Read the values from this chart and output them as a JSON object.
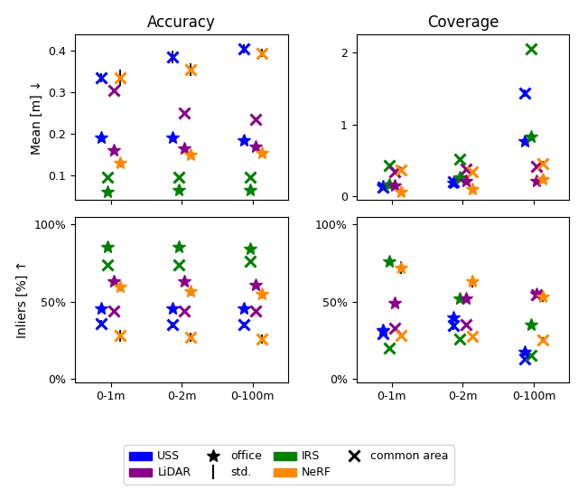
{
  "colors": {
    "USS": "#0000ff",
    "IRS": "#008000",
    "LiDAR": "#880088",
    "NeRF": "#ff8800"
  },
  "categories": [
    "0-1m",
    "0-2m",
    "0-100m"
  ],
  "x_positions": [
    1,
    2,
    3
  ],
  "acc_mean": {
    "USS": {
      "office": [
        0.19,
        0.19,
        0.185
      ],
      "common": [
        0.335,
        0.385,
        0.405
      ],
      "err_office": [
        0.01,
        0.01,
        0.01
      ],
      "err_common": [
        0.01,
        0.015,
        0.01
      ]
    },
    "IRS": {
      "office": [
        0.06,
        0.065,
        0.065
      ],
      "common": [
        0.095,
        0.095,
        0.095
      ],
      "err_office": [
        0.0,
        0.0,
        0.0
      ],
      "err_common": [
        0.0,
        0.0,
        0.0
      ]
    },
    "LiDAR": {
      "office": [
        0.16,
        0.165,
        0.17
      ],
      "common": [
        0.305,
        0.25,
        0.235
      ],
      "err_office": [
        0.0,
        0.0,
        0.0
      ],
      "err_common": [
        0.0,
        0.0,
        0.0
      ]
    },
    "NeRF": {
      "office": [
        0.13,
        0.15,
        0.155
      ],
      "common": [
        0.335,
        0.355,
        0.395
      ],
      "err_office": [
        0.01,
        0.01,
        0.01
      ],
      "err_common": [
        0.02,
        0.015,
        0.01
      ]
    }
  },
  "acc_inliers": {
    "USS": {
      "office": [
        0.46,
        0.46,
        0.46
      ],
      "common": [
        0.36,
        0.35,
        0.35
      ],
      "err_office": [
        0.02,
        0.02,
        0.02
      ],
      "err_common": [
        0.02,
        0.02,
        0.02
      ]
    },
    "IRS": {
      "office": [
        0.855,
        0.855,
        0.845
      ],
      "common": [
        0.74,
        0.74,
        0.76
      ],
      "err_office": [
        0.0,
        0.0,
        0.0
      ],
      "err_common": [
        0.0,
        0.0,
        0.0
      ]
    },
    "LiDAR": {
      "office": [
        0.63,
        0.63,
        0.61
      ],
      "common": [
        0.44,
        0.44,
        0.44
      ],
      "err_office": [
        0.0,
        0.0,
        0.0
      ],
      "err_common": [
        0.0,
        0.0,
        0.0
      ]
    },
    "NeRF": {
      "office": [
        0.6,
        0.57,
        0.55
      ],
      "common": [
        0.28,
        0.27,
        0.26
      ],
      "err_office": [
        0.03,
        0.03,
        0.03
      ],
      "err_common": [
        0.04,
        0.03,
        0.03
      ]
    }
  },
  "cov_mean": {
    "USS": {
      "office": [
        0.14,
        0.19,
        0.77
      ],
      "common": [
        0.13,
        0.2,
        1.43
      ],
      "err_office": [
        0.01,
        0.01,
        0.02
      ],
      "err_common": [
        0.01,
        0.01,
        0.05
      ]
    },
    "IRS": {
      "office": [
        0.16,
        0.26,
        0.83
      ],
      "common": [
        0.43,
        0.52,
        2.05
      ],
      "err_office": [
        0.0,
        0.0,
        0.0
      ],
      "err_common": [
        0.0,
        0.0,
        0.0
      ]
    },
    "LiDAR": {
      "office": [
        0.15,
        0.21,
        0.22
      ],
      "common": [
        0.34,
        0.38,
        0.42
      ],
      "err_office": [
        0.0,
        0.0,
        0.0
      ],
      "err_common": [
        0.0,
        0.0,
        0.0
      ]
    },
    "NeRF": {
      "office": [
        0.07,
        0.1,
        0.24
      ],
      "common": [
        0.37,
        0.34,
        0.46
      ],
      "err_office": [
        0.01,
        0.01,
        0.02
      ],
      "err_common": [
        0.03,
        0.02,
        0.03
      ]
    }
  },
  "cov_inliers": {
    "USS": {
      "office": [
        0.32,
        0.4,
        0.175
      ],
      "common": [
        0.295,
        0.345,
        0.13
      ],
      "err_office": [
        0.03,
        0.025,
        0.01
      ],
      "err_common": [
        0.02,
        0.025,
        0.01
      ]
    },
    "IRS": {
      "office": [
        0.76,
        0.52,
        0.35
      ],
      "common": [
        0.2,
        0.26,
        0.155
      ],
      "err_office": [
        0.0,
        0.0,
        0.0
      ],
      "err_common": [
        0.0,
        0.0,
        0.0
      ]
    },
    "LiDAR": {
      "office": [
        0.49,
        0.52,
        0.55
      ],
      "common": [
        0.33,
        0.355,
        0.545
      ],
      "err_office": [
        0.0,
        0.0,
        0.0
      ],
      "err_common": [
        0.0,
        0.0,
        0.0
      ]
    },
    "NeRF": {
      "office": [
        0.72,
        0.63,
        0.535
      ],
      "common": [
        0.28,
        0.275,
        0.255
      ],
      "err_office": [
        0.04,
        0.04,
        0.035
      ],
      "err_common": [
        0.015,
        0.015,
        0.015
      ]
    }
  },
  "title_accuracy": "Accuracy",
  "title_coverage": "Coverage",
  "ylabel_mean": "Mean [m] ↓",
  "ylabel_inliers": "Inliers [%] ↑",
  "legend_USS": "USS",
  "legend_IRS": "IRS",
  "legend_LiDAR": "LiDAR",
  "legend_NeRF": "NeRF",
  "legend_office": "office",
  "legend_common": "common area",
  "legend_std": "std."
}
